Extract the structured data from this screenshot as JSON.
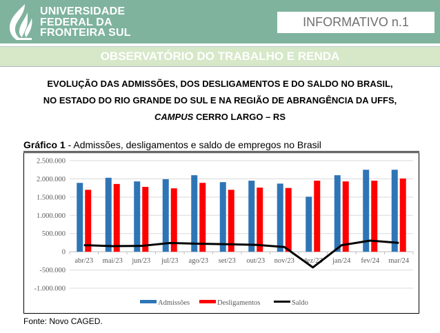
{
  "header": {
    "university_lines": [
      "UNIVERSIDADE",
      "FEDERAL DA",
      "FRONTEIRA SUL"
    ],
    "logo_icon": "ufss-flame-logo-icon",
    "informativo": "INFORMATIVO n.1",
    "observatorio": "OBSERVATÓRIO DO TRABALHO E RENDA",
    "colors": {
      "header_bg": "#7fb39e",
      "band_bg": "#d6e8c8"
    }
  },
  "title": {
    "line1": "EVOLUÇÃO DAS ADMISSÕES, DOS DESLIGAMENTOS E DO SALDO NO BRASIL,",
    "line2": "NO ESTADO DO RIO GRANDE DO SUL E NA REGIÃO DE ABRANGÊNCIA DA UFFS,",
    "line3_italic": "CAMPUS",
    "line3_rest": " CERRO LARGO – RS"
  },
  "caption": {
    "label": "Gráfico 1",
    "text": " - Admissões, desligamentos e saldo de empregos no Brasil"
  },
  "source": "Fonte: Novo CAGED.",
  "chart_data": {
    "type": "bar",
    "title": "Admissões, desligamentos e saldo de empregos no Brasil",
    "xlabel": "",
    "ylabel": "",
    "categories": [
      "abr/23",
      "mai/23",
      "jun/23",
      "jul/23",
      "ago/23",
      "set/23",
      "out/23",
      "nov/23",
      "dez/23",
      "jan/24",
      "fev/24",
      "mar/24"
    ],
    "series": [
      {
        "name": "Admissões",
        "kind": "bar",
        "color": "#2e75b6",
        "values": [
          1890000,
          2030000,
          1930000,
          1990000,
          2100000,
          1910000,
          1950000,
          1870000,
          1510000,
          2100000,
          2250000,
          2250000
        ]
      },
      {
        "name": "Desligamentos",
        "kind": "bar",
        "color": "#ff0000",
        "values": [
          1700000,
          1860000,
          1780000,
          1740000,
          1890000,
          1700000,
          1760000,
          1750000,
          1950000,
          1930000,
          1950000,
          2010000
        ]
      },
      {
        "name": "Saldo",
        "kind": "line",
        "color": "#000000",
        "values": [
          180000,
          155000,
          160000,
          240000,
          220000,
          205000,
          190000,
          130000,
          -430000,
          180000,
          305000,
          245000
        ]
      }
    ],
    "ylim": [
      -1000000,
      2500000
    ],
    "yticks": [
      2500000,
      2000000,
      1500000,
      1000000,
      500000,
      0,
      -500000,
      -1000000
    ],
    "ytick_labels": [
      "2.500.000",
      "2.000.000",
      "1.500.000",
      "1.000.000",
      "500.000",
      "0",
      "-500.000",
      "-1.000.000"
    ],
    "grid": true,
    "legend": {
      "position": "bottom",
      "entries": [
        "Admissões",
        "Desligamentos",
        "Saldo"
      ]
    }
  }
}
